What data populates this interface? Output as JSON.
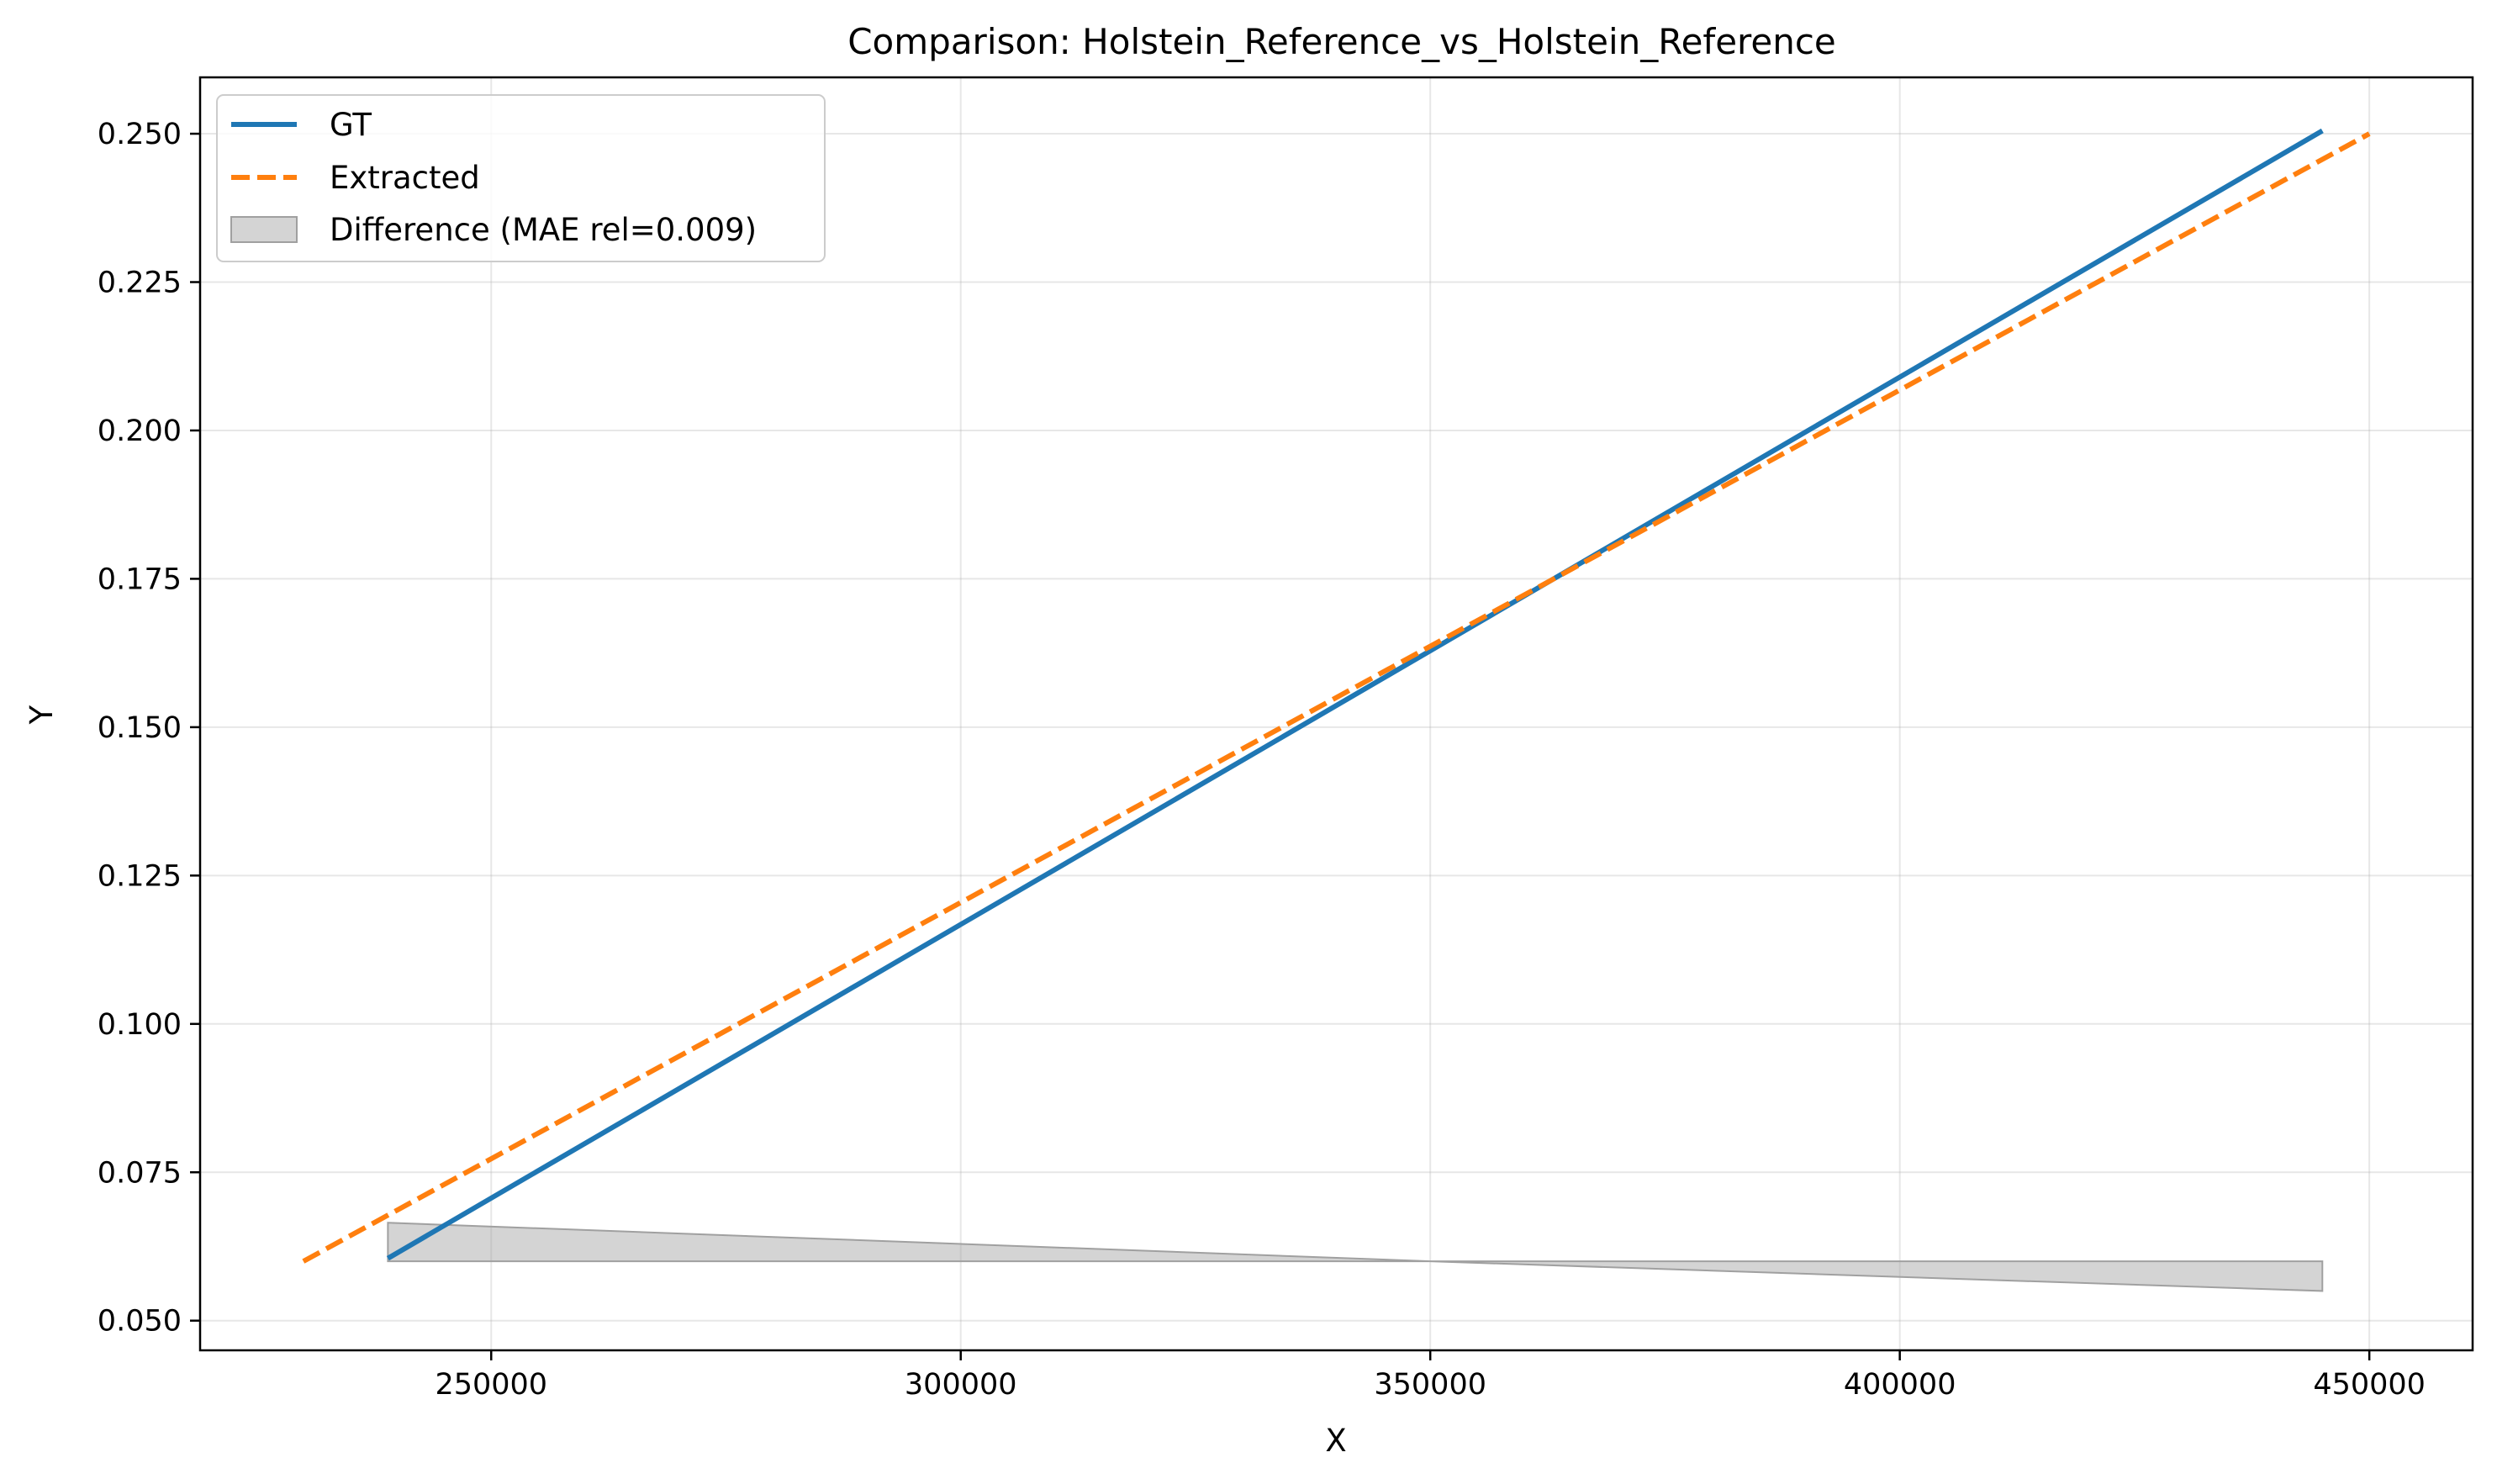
{
  "chart_data": {
    "type": "line",
    "title": "Comparison: Holstein_Reference_vs_Holstein_Reference",
    "xlabel": "X",
    "ylabel": "Y",
    "xlim": [
      219000,
      461000
    ],
    "ylim": [
      0.045,
      0.2595
    ],
    "x_ticks": [
      250000,
      300000,
      350000,
      400000,
      450000
    ],
    "x_tick_labels": [
      "250000",
      "300000",
      "350000",
      "400000",
      "450000"
    ],
    "y_ticks": [
      0.05,
      0.075,
      0.1,
      0.125,
      0.15,
      0.175,
      0.2,
      0.225,
      0.25
    ],
    "y_tick_labels": [
      "0.050",
      "0.075",
      "0.100",
      "0.125",
      "0.150",
      "0.175",
      "0.200",
      "0.225",
      "0.250"
    ],
    "grid": true,
    "legend_position": "top-left",
    "series": [
      {
        "name": "GT",
        "style": "solid",
        "color": "#1f77b4",
        "x": [
          239000,
          445000
        ],
        "y": [
          0.0605,
          0.2505
        ]
      },
      {
        "name": "Extracted",
        "style": "dashed",
        "color": "#ff7f0e",
        "x": [
          230000,
          450000
        ],
        "y": [
          0.06,
          0.25
        ]
      }
    ],
    "difference_band": {
      "name": "Difference (MAE rel=0.009)",
      "color": "#a0a0a0",
      "x": [
        239000,
        350000,
        445000
      ],
      "lower": [
        0.06,
        0.06,
        0.055
      ],
      "upper": [
        0.0665,
        0.06,
        0.06
      ]
    }
  }
}
